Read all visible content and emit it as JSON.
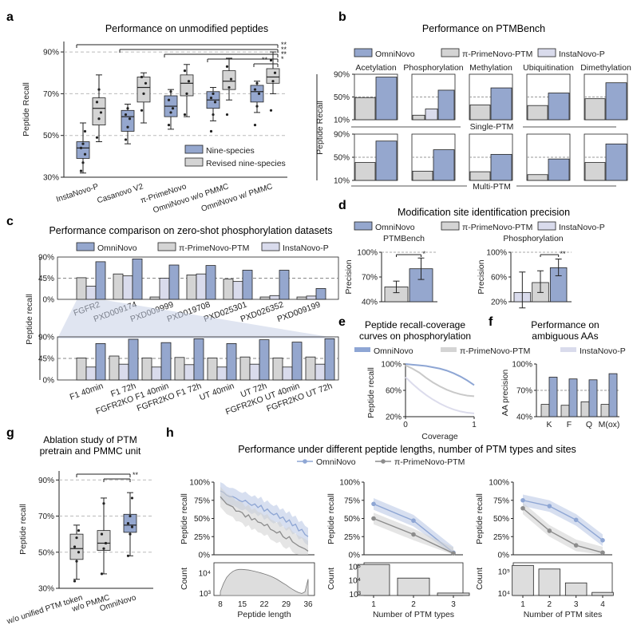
{
  "colors": {
    "blue": "#95A7CE",
    "grey": "#D4D4D4",
    "lavender": "#D9DBEC",
    "dark": "#333333",
    "blueLine": "#8EA6D4",
    "greyLine": "#8C8C8C"
  },
  "panels": {
    "a": {
      "letter": "a",
      "title": "Performance on unmodified peptides",
      "ylabel": "Peptide Recall",
      "yticks": [
        "30%",
        "50%",
        "70%",
        "90%"
      ],
      "categories": [
        "InstaNovo-P",
        "Casanovo V2",
        "π-PrimeNovo",
        "OmniNovo w/o PMMC",
        "OmniNovo w/ PMMC"
      ],
      "legend": [
        "Nine-species",
        "Revised nine-species"
      ],
      "sig": [
        "**",
        "**",
        "**",
        "*",
        "**"
      ]
    },
    "b": {
      "letter": "b",
      "title": "Performance on PTMBench",
      "legend": [
        "OmniNovo",
        "π-PrimeNovo-PTM",
        "InstaNovo-P"
      ],
      "ptms": [
        "Acetylation",
        "Phosphorylation",
        "Methylation",
        "Ubiquitination",
        "Dimethylation"
      ],
      "rows": [
        "Single-PTM",
        "Multi-PTM"
      ],
      "ylabel": "Peptide Recall",
      "yticks": [
        "10%",
        "50%",
        "90%"
      ]
    },
    "c": {
      "letter": "c",
      "title": "Performance comparison on zero-shot phosphorylation datasets",
      "legend": [
        "OmniNovo",
        "π-PrimeNovo-PTM",
        "InstaNovo-P"
      ],
      "ylabel": "Peptide recall",
      "yticks": [
        "0%",
        "45%",
        "90%"
      ],
      "datasets": [
        "FGFR2",
        "PXD009174",
        "PXD009999",
        "PXD019708",
        "PXD025301",
        "PXD026352",
        "PXD009199"
      ],
      "subsets": [
        "F1 40min",
        "F1 72h",
        "FGFR2KO F1 40min",
        "FGFR2KO F1 72h",
        "UT 40min",
        "UT 72h",
        "FGFR2KO UT 40min",
        "FGFR2KO UT 72h"
      ]
    },
    "d": {
      "letter": "d",
      "title": "Modification site identification precision",
      "legend": [
        "OmniNovo",
        "π-PrimeNovo-PTM",
        "InstaNovo-P"
      ],
      "left_title": "PTMBench",
      "right_title": "Phosphorylation",
      "ylabel": "Precision",
      "left_yticks": [
        "40%",
        "70%",
        "100%"
      ],
      "right_yticks": [
        "20%",
        "60%",
        "100%"
      ],
      "sig_left": "*",
      "sig_right": "**"
    },
    "e": {
      "letter": "e",
      "title_line1": "Peptide recall-coverage",
      "title_line2": "curves on phosphorylation",
      "legend": [
        "OmniNovo",
        "π-PrimeNovo-PTM"
      ],
      "xlabel": "Coverage",
      "ylabel": "Peptide recall",
      "yticks": [
        "20%",
        "60%",
        "100%"
      ],
      "xticks": [
        "0",
        "1"
      ]
    },
    "f": {
      "letter": "f",
      "title_line1": "Performance on",
      "title_line2": "ambiguous AAs",
      "legend": [
        "InstaNovo-P"
      ],
      "ylabel": "AA precision",
      "yticks": [
        "40%",
        "70%",
        "100%"
      ],
      "categories": [
        "K",
        "F",
        "Q",
        "M(ox)"
      ]
    },
    "g": {
      "letter": "g",
      "title_line1": "Ablation study of PTM",
      "title_line2": "pretrain and PMMC unit",
      "ylabel": "Peptide recall",
      "yticks": [
        "30%",
        "50%",
        "70%",
        "90%"
      ],
      "categories": [
        "w/o unified PTM token",
        "w/o PMMC",
        "OmniNovo"
      ],
      "sig": "**"
    },
    "h": {
      "letter": "h",
      "title": "Performance under different peptide lengths, number of PTM types and sites",
      "legend": [
        "OmniNovo",
        "π-PrimeNovo-PTM"
      ],
      "ylabel": "Peptide recall",
      "count_label": "Count",
      "yticks": [
        "0%",
        "25%",
        "50%",
        "75%",
        "100%"
      ],
      "xlabels": [
        "Peptide length",
        "Number of PTM types",
        "Number of PTM sites"
      ],
      "length_ticks": [
        "8",
        "15",
        "22",
        "29",
        "36"
      ],
      "count_ticks_1": [
        "10³",
        "10⁴"
      ],
      "count_ticks_2": [
        "10³",
        "10⁴",
        "10⁵"
      ],
      "count_ticks_3": [
        "10⁴",
        "10⁵"
      ],
      "types_ticks": [
        "1",
        "2",
        "3"
      ],
      "sites_ticks": [
        "1",
        "2",
        "3",
        "4"
      ]
    }
  },
  "chart_data": [
    {
      "panel": "a",
      "type": "box",
      "ylim": [
        30,
        95
      ],
      "series": [
        {
          "name": "Nine-species",
          "boxes": [
            {
              "q1": 39,
              "median": 44,
              "q3": 47,
              "low": 32,
              "high": 56,
              "points": [
                33,
                37,
                41,
                44,
                46,
                52
              ]
            },
            {
              "q1": 52,
              "median": 59,
              "q3": 62,
              "low": 46,
              "high": 65,
              "points": [
                48,
                54,
                58,
                60,
                63
              ]
            },
            {
              "q1": 59,
              "median": 64,
              "q3": 69,
              "low": 53,
              "high": 72,
              "points": [
                55,
                61,
                63,
                67,
                71
              ]
            },
            {
              "q1": 63,
              "median": 67,
              "q3": 71,
              "low": 57,
              "high": 73,
              "points": [
                52,
                60,
                66,
                68,
                70
              ]
            },
            {
              "q1": 66,
              "median": 71,
              "q3": 74,
              "low": 61,
              "high": 76,
              "points": [
                55,
                64,
                70,
                72,
                75
              ]
            }
          ]
        },
        {
          "name": "Revised nine-species",
          "boxes": [
            {
              "q1": 55,
              "median": 63,
              "q3": 68,
              "low": 47,
              "high": 79,
              "points": [
                49,
                58,
                61,
                66,
                72
              ]
            },
            {
              "q1": 66,
              "median": 73,
              "q3": 78,
              "low": 56,
              "high": 80,
              "points": [
                62,
                70,
                75,
                78
              ]
            },
            {
              "q1": 69,
              "median": 75,
              "q3": 79,
              "low": 59,
              "high": 84,
              "points": [
                60,
                70,
                76,
                81
              ]
            },
            {
              "q1": 72,
              "median": 76,
              "q3": 81,
              "low": 67,
              "high": 87,
              "points": [
                60,
                73,
                77,
                83
              ]
            },
            {
              "q1": 75,
              "median": 78,
              "q3": 82,
              "low": 70,
              "high": 90,
              "points": [
                62,
                76,
                80,
                86
              ]
            }
          ]
        }
      ]
    },
    {
      "panel": "b",
      "type": "bar",
      "ylim": [
        10,
        90
      ],
      "categories": [
        "Acetylation",
        "Phosphorylation",
        "Methylation",
        "Ubiquitination",
        "Dimethylation"
      ],
      "series_single": [
        {
          "name": "π-PrimeNovo-PTM",
          "values": [
            49,
            18,
            36,
            35,
            47
          ]
        },
        {
          "name": "InstaNovo-P",
          "values": [
            null,
            29,
            null,
            null,
            null
          ]
        },
        {
          "name": "OmniNovo",
          "values": [
            85,
            62,
            66,
            57,
            75
          ]
        }
      ],
      "series_multi": [
        {
          "name": "π-PrimeNovo-PTM",
          "values": [
            41,
            26,
            25,
            20,
            41
          ]
        },
        {
          "name": "InstaNovo-P",
          "values": [
            null,
            null,
            null,
            null,
            null
          ]
        },
        {
          "name": "OmniNovo",
          "values": [
            78,
            63,
            55,
            47,
            73
          ]
        }
      ]
    },
    {
      "panel": "c-top",
      "type": "bar",
      "ylim": [
        0,
        90
      ],
      "categories": [
        "FGFR2",
        "PXD009174",
        "PXD009999",
        "PXD019708",
        "PXD025301",
        "PXD026352",
        "PXD009199"
      ],
      "series": [
        {
          "name": "π-PrimeNovo-PTM",
          "values": [
            46,
            54,
            5,
            52,
            43,
            5,
            5
          ]
        },
        {
          "name": "InstaNovo-P",
          "values": [
            28,
            50,
            45,
            54,
            38,
            8,
            7
          ]
        },
        {
          "name": "OmniNovo",
          "values": [
            80,
            86,
            73,
            72,
            62,
            62,
            23
          ]
        }
      ]
    },
    {
      "panel": "c-bottom",
      "type": "bar",
      "ylim": [
        0,
        90
      ],
      "categories": [
        "F1 40min",
        "F1 72h",
        "FGFR2KO F1 40min",
        "FGFR2KO F1 72h",
        "UT 40min",
        "UT 72h",
        "FGFR2KO UT 40min",
        "FGFR2KO UT 72h"
      ],
      "series": [
        {
          "name": "π-PrimeNovo-PTM",
          "values": [
            46,
            50,
            46,
            47,
            46,
            48,
            46,
            48
          ]
        },
        {
          "name": "InstaNovo-P",
          "values": [
            27,
            33,
            27,
            32,
            27,
            33,
            27,
            33
          ]
        },
        {
          "name": "OmniNovo",
          "values": [
            76,
            85,
            78,
            86,
            76,
            84,
            79,
            86
          ]
        }
      ]
    },
    {
      "panel": "d-left",
      "type": "bar",
      "ylim": [
        40,
        100
      ],
      "categories": [
        "π-PrimeNovo-PTM",
        "OmniNovo"
      ],
      "values": [
        58,
        80
      ],
      "err_low": [
        51,
        67
      ],
      "err_high": [
        65,
        93
      ]
    },
    {
      "panel": "d-right",
      "type": "bar",
      "ylim": [
        20,
        100
      ],
      "categories": [
        "InstaNovo-P",
        "π-PrimeNovo-PTM",
        "OmniNovo"
      ],
      "values": [
        35,
        51,
        75
      ],
      "err_low": [
        10,
        35,
        62
      ],
      "err_high": [
        68,
        70,
        89
      ]
    },
    {
      "panel": "e",
      "type": "line",
      "ylim": [
        20,
        100
      ],
      "xlim": [
        0,
        1
      ],
      "series": [
        {
          "name": "OmniNovo",
          "x": [
            0,
            0.1,
            0.2,
            0.3,
            0.4,
            0.5,
            0.6,
            0.7,
            0.8,
            0.9,
            1.0
          ],
          "y": [
            100,
            99,
            98,
            97,
            95,
            93,
            90,
            86,
            81,
            75,
            68
          ]
        },
        {
          "name": "π-PrimeNovo-PTM",
          "x": [
            0,
            0.1,
            0.2,
            0.3,
            0.4,
            0.5,
            0.6,
            0.7,
            0.8,
            0.9,
            1.0
          ],
          "y": [
            98,
            93,
            87,
            79,
            72,
            66,
            61,
            57,
            54,
            52,
            51
          ]
        },
        {
          "name": "InstaNovo-P",
          "x": [
            0,
            0.1,
            0.2,
            0.3,
            0.4,
            0.5,
            0.6,
            0.7,
            0.8,
            0.9,
            1.0
          ],
          "y": [
            80,
            70,
            61,
            53,
            46,
            40,
            35,
            31,
            28,
            26,
            25
          ]
        }
      ]
    },
    {
      "panel": "f",
      "type": "bar",
      "ylim": [
        40,
        100
      ],
      "categories": [
        "K",
        "F",
        "Q",
        "M(ox)"
      ],
      "series": [
        {
          "name": "π-PrimeNovo-PTM",
          "values": [
            54,
            53,
            57,
            54
          ]
        },
        {
          "name": "OmniNovo",
          "values": [
            85,
            83,
            82,
            89
          ]
        }
      ]
    },
    {
      "panel": "g",
      "type": "box",
      "ylim": [
        30,
        95
      ],
      "categories": [
        "w/o unified PTM token",
        "w/o PMMC",
        "OmniNovo"
      ],
      "boxes": [
        {
          "q1": 46,
          "median": 52,
          "q3": 60,
          "low": 35,
          "high": 65,
          "points": [
            34,
            45,
            50,
            53,
            58,
            62
          ]
        },
        {
          "q1": 51,
          "median": 55,
          "q3": 62,
          "low": 38,
          "high": 80,
          "points": [
            38,
            52,
            55,
            60,
            77
          ]
        },
        {
          "q1": 61,
          "median": 65,
          "q3": 71,
          "low": 48,
          "high": 83,
          "points": [
            48,
            60,
            64,
            66,
            70,
            80
          ]
        }
      ]
    },
    {
      "panel": "h-length",
      "type": "line",
      "ylim": [
        0,
        100
      ],
      "xlim": [
        8,
        36
      ],
      "x": [
        8,
        9,
        10,
        11,
        12,
        13,
        14,
        15,
        16,
        17,
        18,
        19,
        20,
        21,
        22,
        23,
        24,
        25,
        26,
        27,
        28,
        29,
        30,
        31,
        32,
        33,
        34,
        35,
        36
      ],
      "series": [
        {
          "name": "OmniNovo",
          "values": [
            88,
            86,
            82,
            80,
            80,
            78,
            75,
            73,
            75,
            71,
            68,
            70,
            65,
            68,
            60,
            63,
            58,
            55,
            57,
            50,
            52,
            45,
            48,
            40,
            42,
            33,
            35,
            28,
            25
          ],
          "band": 12
        },
        {
          "name": "π-PrimeNovo-PTM",
          "values": [
            80,
            75,
            70,
            68,
            66,
            60,
            60,
            58,
            52,
            55,
            48,
            50,
            45,
            44,
            40,
            42,
            35,
            33,
            30,
            32,
            25,
            22,
            25,
            18,
            15,
            12,
            10,
            8,
            5
          ],
          "band": 14
        }
      ],
      "counts": [
        1200,
        3000,
        6000,
        9000,
        12000,
        14000,
        15000,
        15000,
        14500,
        14000,
        13000,
        12000,
        11000,
        10000,
        9000,
        8000,
        7000,
        6000,
        5000,
        4000,
        3200,
        2600,
        2000,
        1600,
        1300,
        1100,
        1000,
        1200,
        5000
      ]
    },
    {
      "panel": "h-types",
      "type": "line",
      "ylim": [
        0,
        100
      ],
      "x": [
        1,
        2,
        3
      ],
      "series": [
        {
          "name": "OmniNovo",
          "values": [
            70,
            47,
            3
          ]
        },
        {
          "name": "π-PrimeNovo-PTM",
          "values": [
            50,
            28,
            2
          ]
        }
      ],
      "counts": [
        150000,
        15000,
        1200
      ]
    },
    {
      "panel": "h-sites",
      "type": "line",
      "ylim": [
        0,
        100
      ],
      "x": [
        1,
        2,
        3,
        4
      ],
      "series": [
        {
          "name": "OmniNovo",
          "values": [
            75,
            67,
            48,
            20
          ]
        },
        {
          "name": "π-PrimeNovo-PTM",
          "values": [
            64,
            33,
            13,
            3
          ]
        }
      ],
      "counts": [
        190000,
        130000,
        30000,
        11000
      ]
    }
  ]
}
